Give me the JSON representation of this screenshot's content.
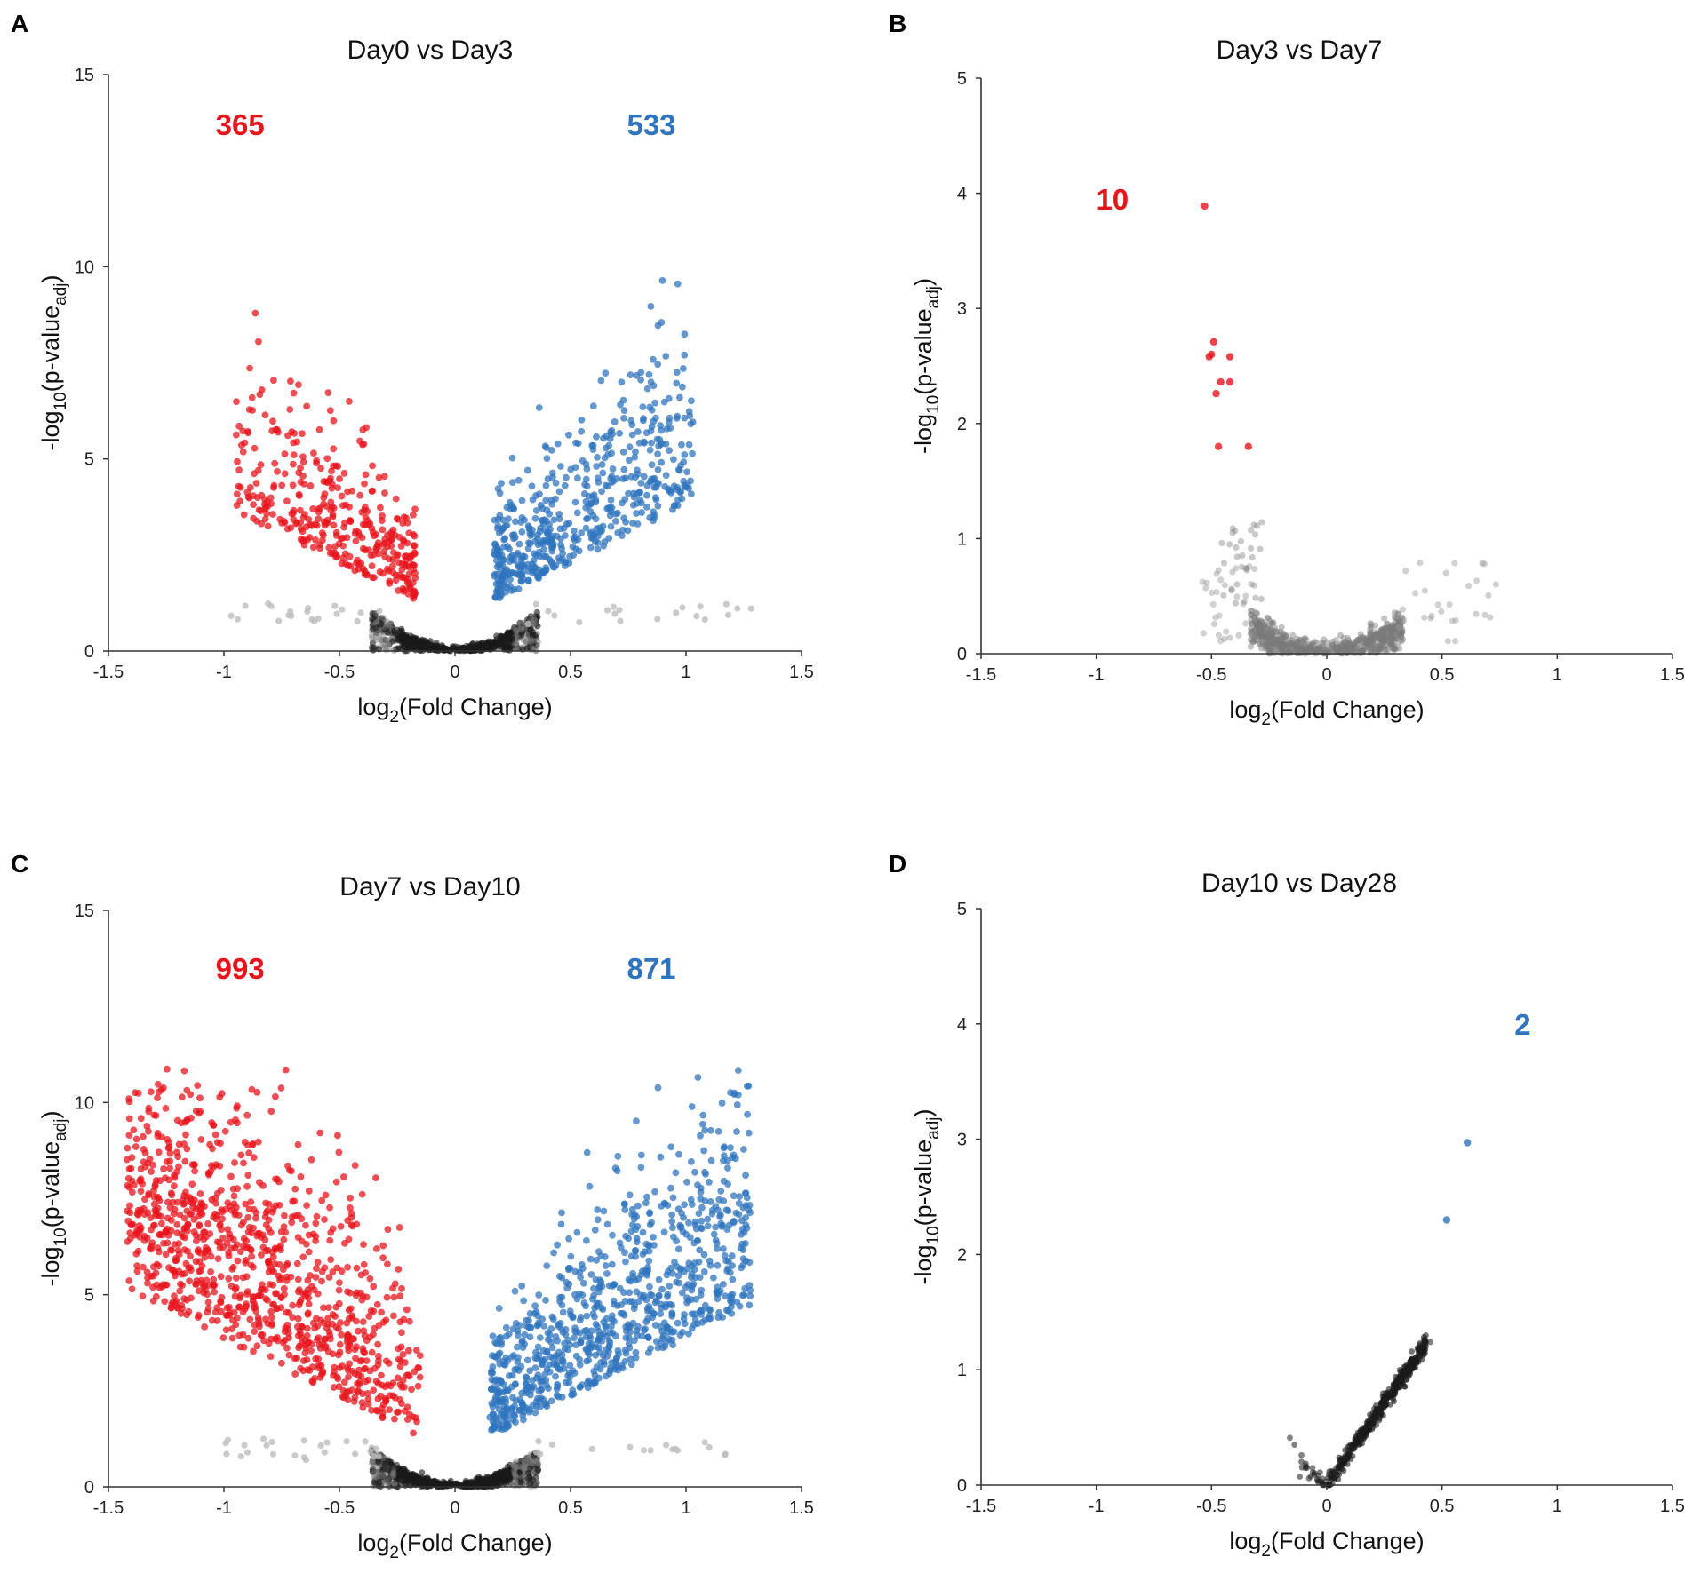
{
  "colors": {
    "up": "#e8141c",
    "down": "#2f74bd",
    "ns": "#1a1a1a",
    "ns_light": "#bdbdbd",
    "axis": "#333333"
  },
  "chart_data": [
    {
      "type": "scatter",
      "panel": "A",
      "title": "Day0 vs Day3",
      "xlabel": {
        "main": "log",
        "sub": "2",
        "rest": "(Fold Change)"
      },
      "ylabel": {
        "pre": "-log",
        "sub1": "10",
        "mid": "(p-value",
        "sub2": "adj",
        "post": ")"
      },
      "xlim": [
        -1.5,
        1.5
      ],
      "ylim": [
        0,
        15
      ],
      "xticks": [
        "-1.5",
        "-1",
        "-0.5",
        "0",
        "0.5",
        "1",
        "1.5"
      ],
      "yticks": [
        "0",
        "5",
        "10",
        "15"
      ],
      "counts": [
        {
          "text": "365",
          "x": -0.93,
          "y": 13.7,
          "color": "up"
        },
        {
          "text": "533",
          "x": 0.85,
          "y": 13.7,
          "color": "down"
        }
      ],
      "gen": {
        "ns_k": 7.0,
        "ns_jit": 0.22,
        "thr": 1.3,
        "xcut": 0.17,
        "red": {
          "n": 365,
          "xmin": -0.95,
          "ymax": 10.3,
          "spread": 1.0
        },
        "blue": {
          "n": 533,
          "xmax": 1.03,
          "ymax": 12.6,
          "spread": 1.0
        },
        "ns_n": 700,
        "seed": 11
      }
    },
    {
      "type": "scatter",
      "panel": "B",
      "title": "Day3 vs Day7",
      "xlabel": {
        "main": "log",
        "sub": "2",
        "rest": "(Fold Change)"
      },
      "ylabel": {
        "pre": "-log",
        "sub1": "10",
        "mid": "(p-value",
        "sub2": "adj",
        "post": ")"
      },
      "xlim": [
        -1.5,
        1.5
      ],
      "ylim": [
        0,
        5
      ],
      "xticks": [
        "-1.5",
        "-1",
        "-0.5",
        "0",
        "0.5",
        "1",
        "1.5"
      ],
      "yticks": [
        "0",
        "1",
        "2",
        "3",
        "4",
        "5"
      ],
      "counts": [
        {
          "text": "10",
          "x": -0.93,
          "y": 3.95,
          "color": "up"
        }
      ],
      "sig_points": [
        {
          "x": -0.53,
          "y": 3.89,
          "c": "up"
        },
        {
          "x": -0.49,
          "y": 2.71,
          "c": "up"
        },
        {
          "x": -0.5,
          "y": 2.6,
          "c": "up"
        },
        {
          "x": -0.51,
          "y": 2.58,
          "c": "up"
        },
        {
          "x": -0.42,
          "y": 2.58,
          "c": "up"
        },
        {
          "x": -0.46,
          "y": 2.36,
          "c": "up"
        },
        {
          "x": -0.42,
          "y": 2.36,
          "c": "up"
        },
        {
          "x": -0.48,
          "y": 2.26,
          "c": "up"
        },
        {
          "x": -0.47,
          "y": 1.8,
          "c": "up"
        },
        {
          "x": -0.34,
          "y": 1.8,
          "c": "up"
        }
      ],
      "gen": {
        "ns_k": 2.0,
        "ns_jit": 0.12,
        "thr": 99,
        "xcut": 9,
        "ns_n": 650,
        "seed": 23,
        "ymaxns": 1.2,
        "light": true
      }
    },
    {
      "type": "scatter",
      "panel": "C",
      "title": "Day7 vs Day10",
      "xlabel": {
        "main": "log",
        "sub": "2",
        "rest": "(Fold Change)"
      },
      "ylabel": {
        "pre": "-log",
        "sub1": "10",
        "mid": "(p-value",
        "sub2": "adj",
        "post": ")"
      },
      "xlim": [
        -1.5,
        1.5
      ],
      "ylim": [
        0,
        15
      ],
      "xticks": [
        "-1.5",
        "-1",
        "-0.5",
        "0",
        "0.5",
        "1",
        "1.5"
      ],
      "yticks": [
        "0",
        "5",
        "10",
        "15"
      ],
      "counts": [
        {
          "text": "993",
          "x": -0.93,
          "y": 13.5,
          "color": "up"
        },
        {
          "text": "871",
          "x": 0.85,
          "y": 13.5,
          "color": "down"
        }
      ],
      "gen": {
        "ns_k": 6.5,
        "ns_jit": 0.25,
        "thr": 1.3,
        "xcut": 0.15,
        "red": {
          "n": 993,
          "xmin": -1.42,
          "ymax": 10.9,
          "spread": 1.6
        },
        "blue": {
          "n": 871,
          "xmax": 1.28,
          "ymax": 10.9,
          "spread": 1.2
        },
        "ns_n": 800,
        "seed": 37
      }
    },
    {
      "type": "scatter",
      "panel": "D",
      "title": "Day10 vs Day28",
      "xlabel": {
        "main": "log",
        "sub": "2",
        "rest": "(Fold Change)"
      },
      "ylabel": {
        "pre": "-log",
        "sub1": "10",
        "mid": "(p-value",
        "sub2": "adj",
        "post": ")"
      },
      "xlim": [
        -1.5,
        1.5
      ],
      "ylim": [
        0,
        5
      ],
      "xticks": [
        "-1.5",
        "-1",
        "-0.5",
        "0",
        "0.5",
        "1",
        "1.5"
      ],
      "yticks": [
        "0",
        "1",
        "2",
        "3",
        "4",
        "5"
      ],
      "counts": [
        {
          "text": "2",
          "x": 0.85,
          "y": 4.0,
          "color": "down"
        }
      ],
      "sig_points": [
        {
          "x": 0.61,
          "y": 2.97,
          "c": "down"
        },
        {
          "x": 0.52,
          "y": 2.3,
          "c": "down"
        }
      ],
      "gen": {
        "mode": "line",
        "ns_n": 420,
        "seed": 53
      }
    }
  ]
}
